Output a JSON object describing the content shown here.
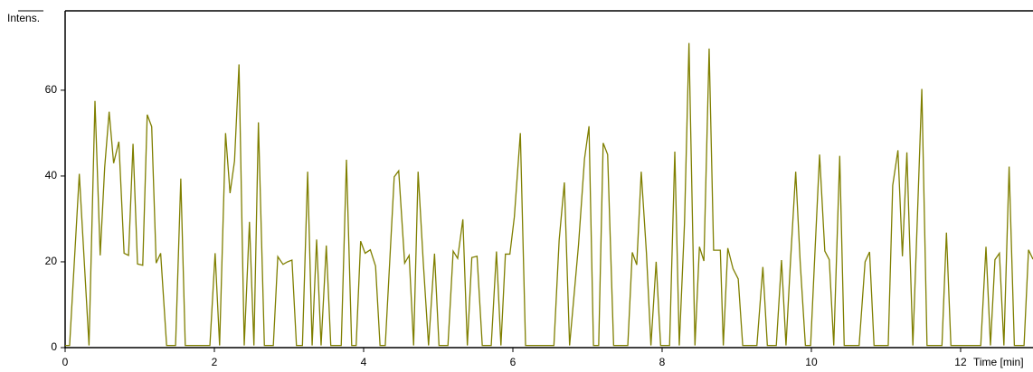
{
  "chart_data": {
    "type": "line",
    "ylabel": "Intens.",
    "xlabel": "Time [min]",
    "color": "#7f7f00",
    "xlim": [
      0,
      12.97
    ],
    "ylim": [
      0,
      78.5
    ],
    "xticks": [
      0,
      2,
      4,
      6,
      8,
      10,
      12
    ],
    "yticks": [
      0,
      20,
      40,
      60
    ],
    "x": [
      0.0,
      0.06,
      0.19,
      0.32,
      0.4,
      0.47,
      0.53,
      0.59,
      0.65,
      0.72,
      0.79,
      0.85,
      0.91,
      0.97,
      1.04,
      1.1,
      1.16,
      1.22,
      1.28,
      1.36,
      1.48,
      1.55,
      1.61,
      1.94,
      2.01,
      2.07,
      2.15,
      2.21,
      2.27,
      2.33,
      2.4,
      2.47,
      2.53,
      2.59,
      2.67,
      2.79,
      2.85,
      2.92,
      2.98,
      3.04,
      3.1,
      3.18,
      3.25,
      3.31,
      3.37,
      3.43,
      3.5,
      3.56,
      3.7,
      3.77,
      3.84,
      3.9,
      3.96,
      4.02,
      4.09,
      4.16,
      4.22,
      4.29,
      4.41,
      4.47,
      4.55,
      4.61,
      4.67,
      4.73,
      4.8,
      4.87,
      4.95,
      5.01,
      5.13,
      5.2,
      5.26,
      5.33,
      5.39,
      5.45,
      5.52,
      5.59,
      5.71,
      5.78,
      5.84,
      5.9,
      5.96,
      6.02,
      6.1,
      6.17,
      6.55,
      6.62,
      6.69,
      6.76,
      6.88,
      6.96,
      7.02,
      7.08,
      7.15,
      7.21,
      7.27,
      7.35,
      7.54,
      7.6,
      7.66,
      7.72,
      7.79,
      7.85,
      7.92,
      7.98,
      8.1,
      8.17,
      8.23,
      8.3,
      8.36,
      8.44,
      8.5,
      8.56,
      8.63,
      8.69,
      8.78,
      8.82,
      8.88,
      8.95,
      9.02,
      9.08,
      9.27,
      9.35,
      9.41,
      9.53,
      9.6,
      9.66,
      9.72,
      9.79,
      9.85,
      9.92,
      9.99,
      10.05,
      10.11,
      10.18,
      10.24,
      10.3,
      10.38,
      10.44,
      10.64,
      10.72,
      10.78,
      10.84,
      11.03,
      11.09,
      11.16,
      11.22,
      11.28,
      11.36,
      11.42,
      11.48,
      11.55,
      11.75,
      11.81,
      11.87,
      12.27,
      12.34,
      12.4,
      12.46,
      12.52,
      12.58,
      12.65,
      12.72,
      12.85,
      12.91,
      12.97
    ],
    "values": [
      0.5,
      0.5,
      40.5,
      0.5,
      57.5,
      21.5,
      42,
      55,
      43,
      48,
      22,
      21.5,
      47.5,
      19.5,
      19.2,
      54.3,
      51.5,
      19.7,
      22,
      0.5,
      0.5,
      39.4,
      0.5,
      0.5,
      22,
      0.5,
      50,
      36,
      43.5,
      66,
      0.5,
      29.3,
      0.5,
      52.5,
      0.5,
      0.5,
      21.2,
      19.4,
      20,
      20.4,
      0.5,
      0.5,
      41,
      0.5,
      25.2,
      0.5,
      23.8,
      0.5,
      0.5,
      43.8,
      0.5,
      0.5,
      24.8,
      22,
      22.8,
      19,
      0.5,
      0.5,
      39.8,
      41.2,
      19.7,
      21.5,
      0.5,
      41,
      19.7,
      0.5,
      21.9,
      0.5,
      0.5,
      22.5,
      20.8,
      29.9,
      0.5,
      21,
      21.3,
      0.5,
      0.5,
      22.4,
      0.5,
      21.8,
      21.8,
      30.5,
      50,
      0.5,
      0.5,
      25,
      38.5,
      0.5,
      24,
      44,
      51.6,
      0.5,
      0.5,
      47.7,
      45,
      0.5,
      0.5,
      22.2,
      19.3,
      41,
      22,
      0.5,
      20,
      0.5,
      0.5,
      45.7,
      0.5,
      29,
      71,
      0.5,
      23.5,
      20.2,
      69.7,
      22.7,
      22.7,
      0.5,
      23.2,
      18.4,
      16,
      0.5,
      0.5,
      18.8,
      0.5,
      0.5,
      20.4,
      0.5,
      20,
      41,
      20,
      0.5,
      0.5,
      23,
      45,
      22.5,
      20.5,
      0.5,
      44.7,
      0.5,
      0.5,
      20,
      22.3,
      0.5,
      0.5,
      37.8,
      46,
      21.3,
      45.5,
      0.5,
      30,
      60.3,
      0.5,
      0.5,
      26.8,
      0.5,
      0.5,
      23.5,
      0.5,
      20.5,
      22,
      0.5,
      42.2,
      0.5,
      0.5,
      22.8,
      20.6
    ]
  }
}
